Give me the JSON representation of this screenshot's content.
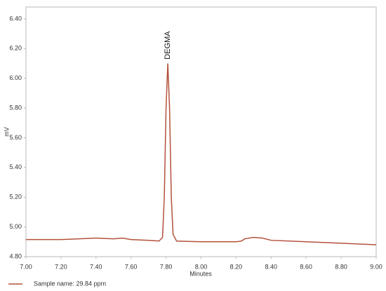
{
  "chart_data": {
    "type": "line",
    "y_label": "mV",
    "x_label": "Minutes",
    "annotation": "DEGMA",
    "series": [
      {
        "name": "Sample name: 29.84 ppm",
        "color": "#b4513a",
        "x": [
          7.0,
          7.2,
          7.3,
          7.4,
          7.5,
          7.55,
          7.6,
          7.7,
          7.76,
          7.78,
          7.79,
          7.8,
          7.81,
          7.82,
          7.83,
          7.84,
          7.86,
          8.0,
          8.2,
          8.23,
          8.25,
          8.3,
          8.35,
          8.4,
          8.6,
          8.8,
          9.0
        ],
        "values": [
          4.915,
          4.915,
          4.92,
          4.925,
          4.92,
          4.925,
          4.915,
          4.91,
          4.905,
          4.93,
          5.2,
          5.8,
          6.1,
          5.8,
          5.2,
          4.95,
          4.905,
          4.9,
          4.9,
          4.905,
          4.92,
          4.93,
          4.925,
          4.91,
          4.9,
          4.89,
          4.88
        ]
      }
    ],
    "xlim": [
      7.0,
      9.0
    ],
    "xticks": [
      {
        "value": 7.0,
        "label": "7.00"
      },
      {
        "value": 7.2,
        "label": "7.20"
      },
      {
        "value": 7.4,
        "label": "7.40"
      },
      {
        "value": 7.6,
        "label": "7.60"
      },
      {
        "value": 7.8,
        "label": "7.80"
      },
      {
        "value": 8.0,
        "label": "8.00"
      },
      {
        "value": 8.2,
        "label": "8.20"
      },
      {
        "value": 8.4,
        "label": "8.40"
      },
      {
        "value": 8.6,
        "label": "8.60"
      },
      {
        "value": 8.8,
        "label": "8.80"
      },
      {
        "value": 9.0,
        "label": "9.00"
      }
    ],
    "ylim": [
      4.8,
      6.48
    ],
    "yticks": [
      {
        "value": 4.8,
        "label": "4.80"
      },
      {
        "value": 5.0,
        "label": "5.00"
      },
      {
        "value": 5.2,
        "label": "5.20"
      },
      {
        "value": 5.4,
        "label": "5.40"
      },
      {
        "value": 5.6,
        "label": "5.60"
      },
      {
        "value": 5.8,
        "label": "5.80"
      },
      {
        "value": 6.0,
        "label": "6.00"
      },
      {
        "value": 6.2,
        "label": "6.20"
      },
      {
        "value": 6.4,
        "label": "6.40"
      }
    ],
    "grid": false
  }
}
